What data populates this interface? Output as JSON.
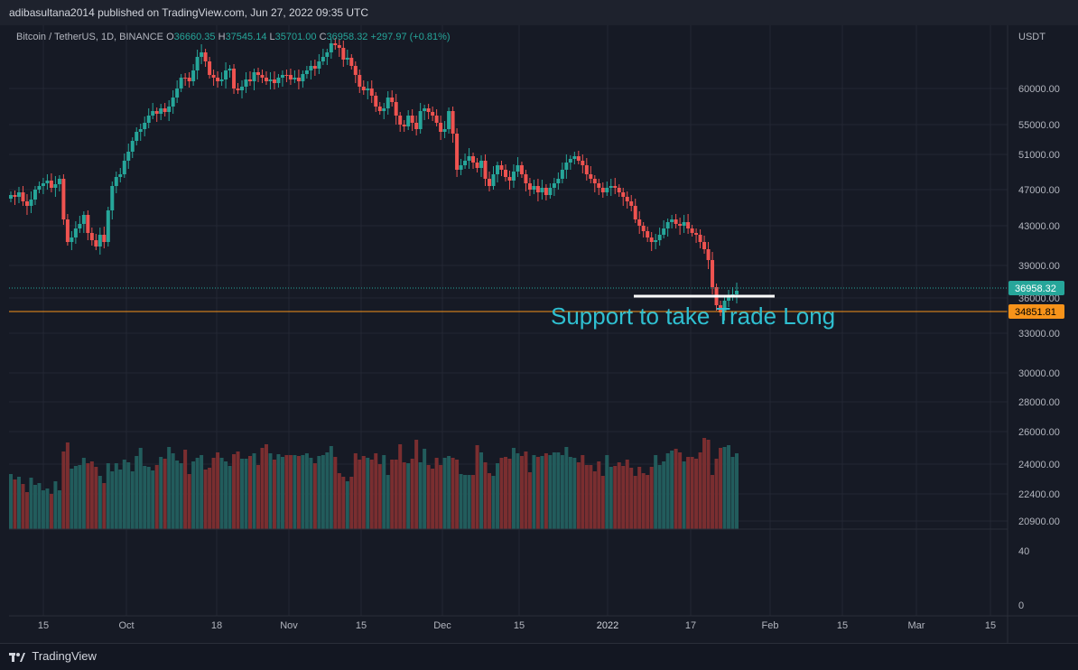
{
  "header": {
    "publish_line": "adibasultana2014 published on TradingView.com, Jun 27, 2022 09:35 UTC"
  },
  "legend": {
    "symbol": "Bitcoin / TetherUS, 1D, BINANCE",
    "o_key": "O",
    "o_val": "36660.35",
    "h_key": "H",
    "h_val": "37545.14",
    "l_key": "L",
    "l_val": "35701.00",
    "c_key": "C",
    "c_val": "36958.32",
    "change": "+297.97 (+0.81%)"
  },
  "price_axis": {
    "currency": "USDT",
    "ticks": [
      "60000.00",
      "55000.00",
      "51000.00",
      "47000.00",
      "43000.00",
      "39000.00",
      "36000.00",
      "33000.00",
      "30000.00",
      "28000.00",
      "26000.00",
      "24000.00",
      "22400.00",
      "20900.00"
    ],
    "last_price": "36958.32",
    "line_price": "34851.81"
  },
  "volume_axis": {
    "ticks": [
      "40",
      "0"
    ]
  },
  "time_axis": {
    "ticks": [
      "15",
      "Oct",
      "18",
      "Nov",
      "15",
      "Dec",
      "15",
      "2022",
      "17",
      "Feb",
      "15",
      "Mar",
      "15"
    ]
  },
  "annotation": {
    "text": "Support to take Trade Long"
  },
  "footer": {
    "brand": "TradingView"
  },
  "colors": {
    "up": "#26a69a",
    "down": "#ef5350",
    "orange": "#f7931a",
    "bg": "#161a25",
    "grid": "#232733"
  }
}
